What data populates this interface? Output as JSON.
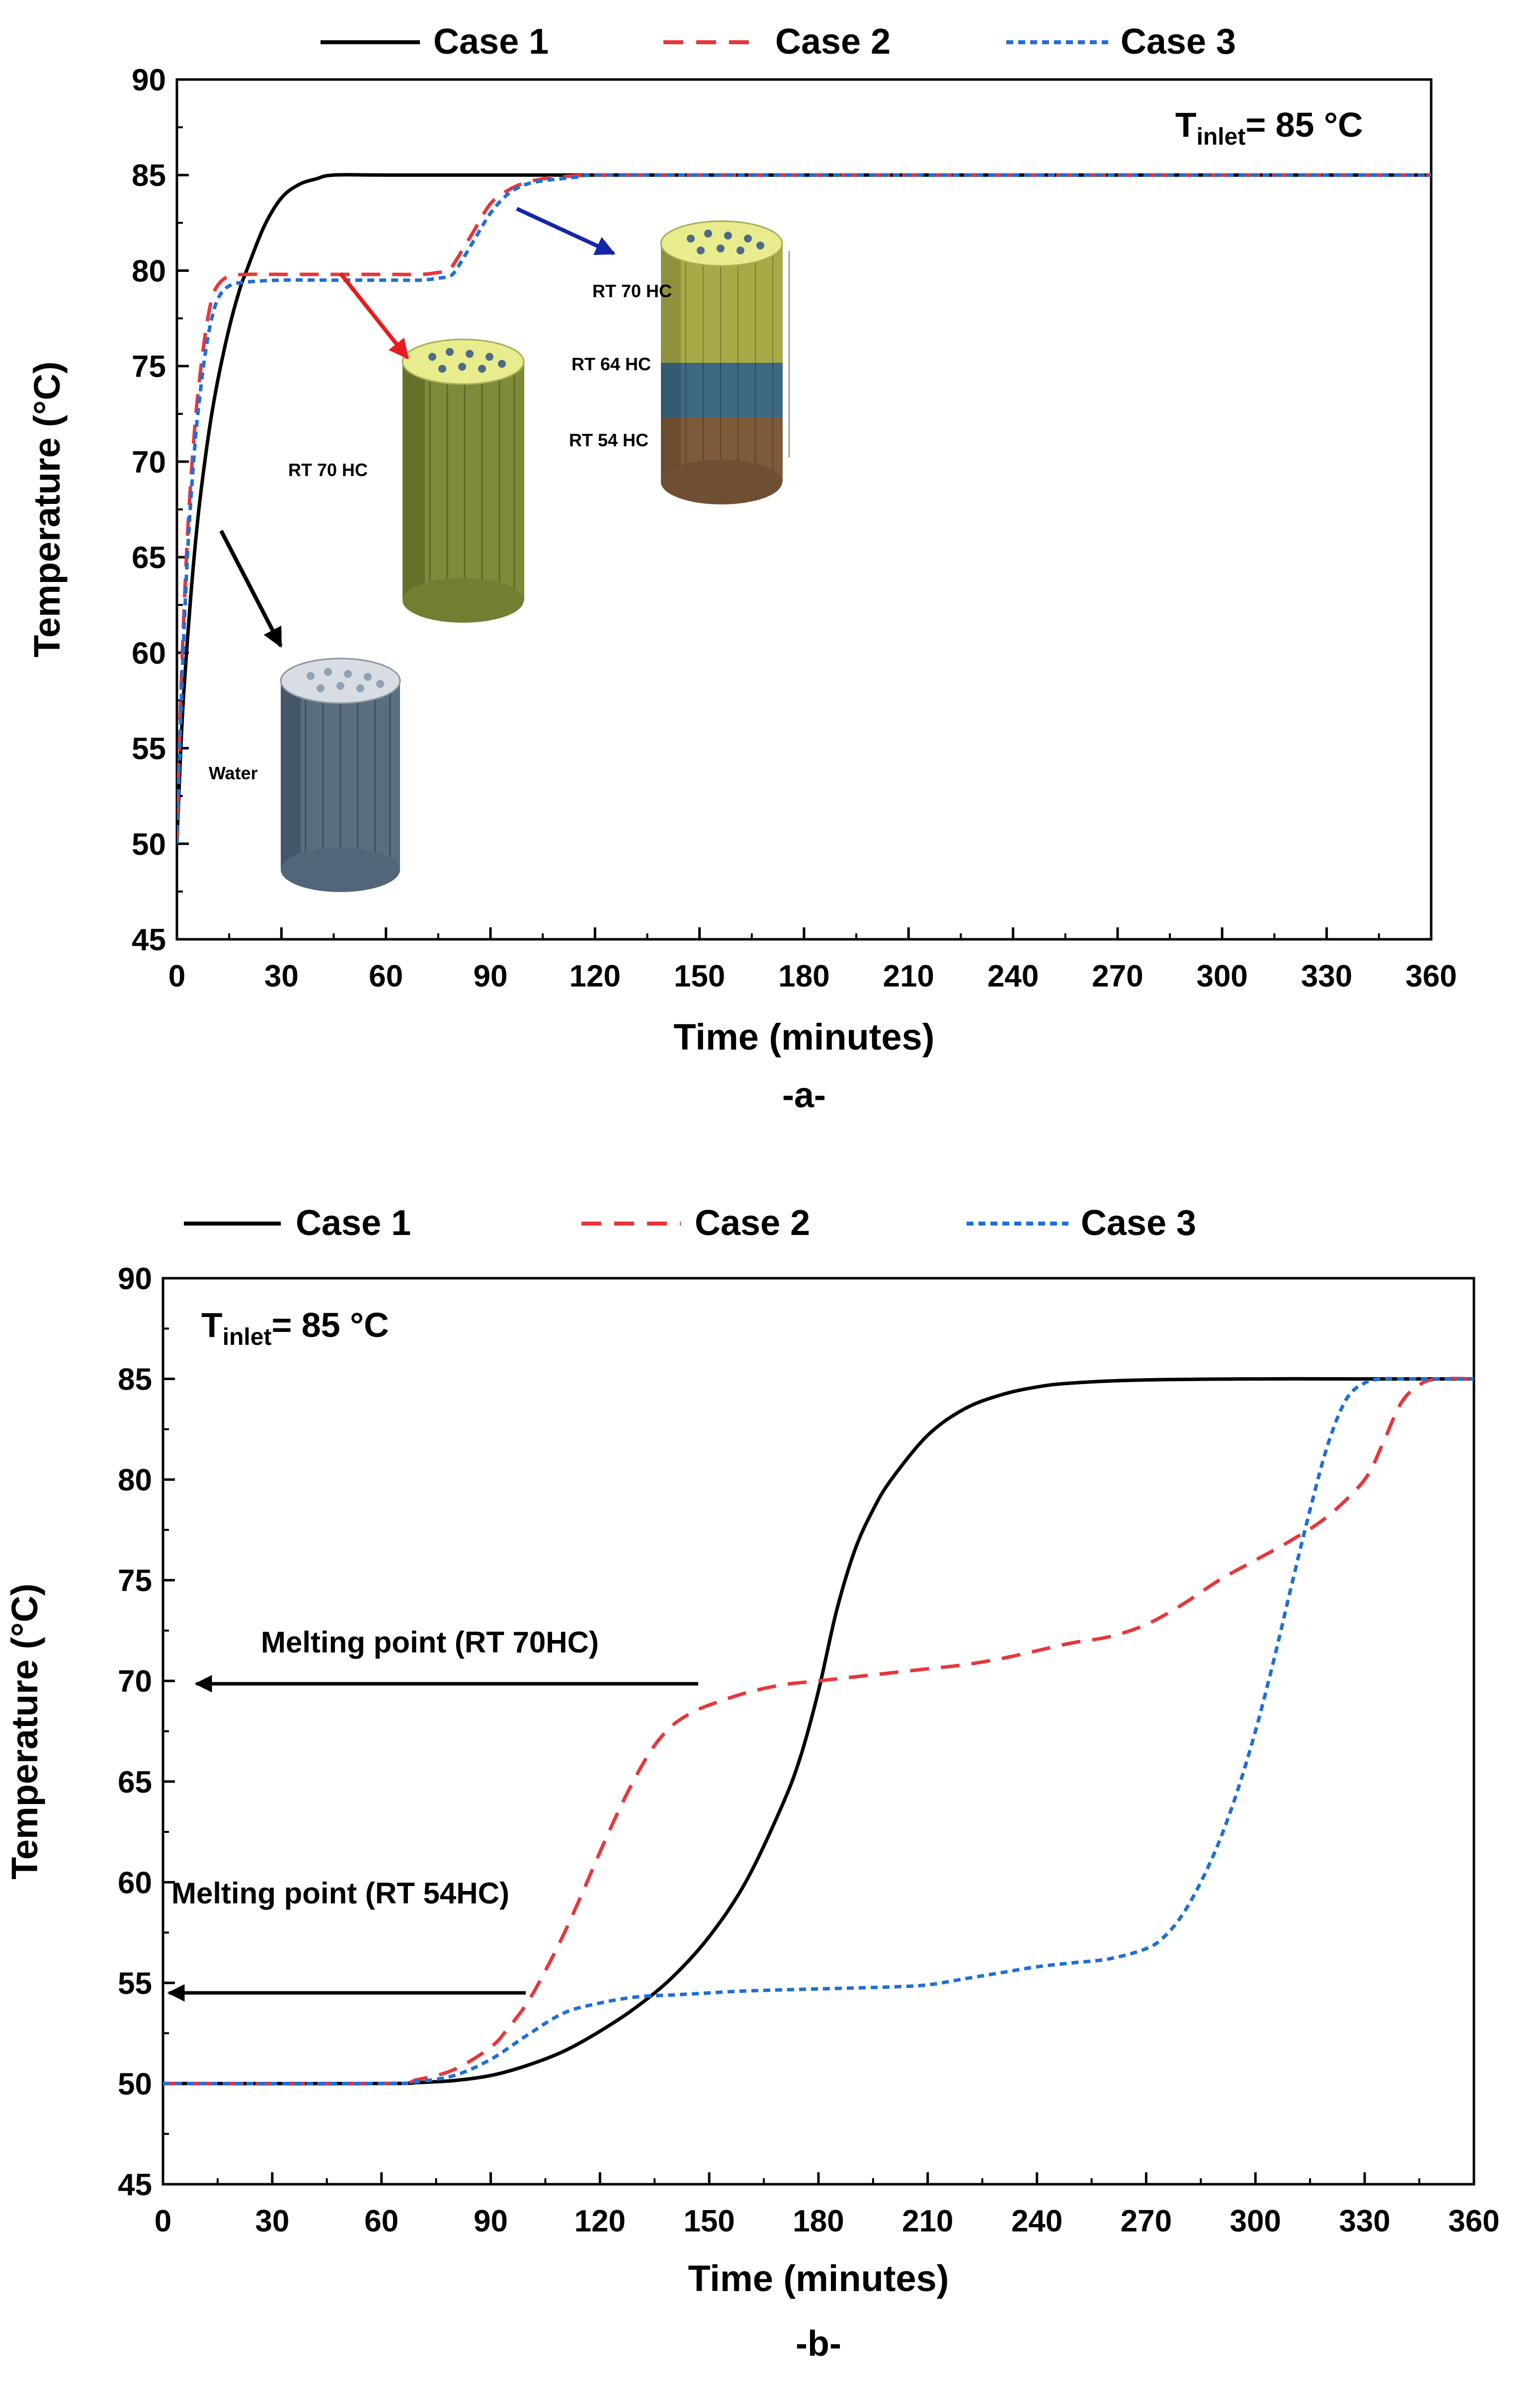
{
  "colors": {
    "case1": "#000000",
    "case2": "#e8363a",
    "case3": "#1f6fd6",
    "arrow_black": "#000000",
    "arrow_red": "#e81c1c",
    "arrow_blue": "#1426a8",
    "water": "#5a6e80",
    "rt70": "#7f8a3a",
    "rt64": "#3d6a82",
    "rt54": "#7d5a3a",
    "top_face": "#e8ec8c"
  },
  "chart_data": [
    {
      "type": "line",
      "panel_label": "-a-",
      "title": "",
      "xlabel": "Time (minutes)",
      "ylabel": "Temperature (°C)",
      "xlim": [
        0,
        360
      ],
      "ylim": [
        45,
        90
      ],
      "xticks": [
        0,
        30,
        60,
        90,
        120,
        150,
        180,
        210,
        240,
        270,
        300,
        330,
        360
      ],
      "yticks": [
        45,
        50,
        55,
        60,
        65,
        70,
        75,
        80,
        85,
        90
      ],
      "legend": [
        "Case 1",
        "Case 2",
        "Case 3"
      ],
      "legend_position": "top-outside",
      "annotation": {
        "main": "T",
        "sub": "inlet",
        "rest": "= 85 °C"
      },
      "insets": [
        {
          "name": "water",
          "label": "Water"
        },
        {
          "name": "rt70",
          "label": "RT 70 HC"
        },
        {
          "name": "layered",
          "labels": [
            "RT 70 HC",
            "RT 64 HC",
            "RT 54 HC"
          ]
        }
      ],
      "series": [
        {
          "name": "Case 1",
          "style": "solid",
          "x": [
            0,
            1,
            2,
            4,
            6,
            8,
            10,
            12,
            15,
            18,
            20,
            25,
            30,
            35,
            40,
            45,
            60,
            90,
            120,
            150,
            180,
            210,
            240,
            270,
            300,
            330,
            360
          ],
          "y": [
            50,
            54.5,
            58,
            63,
            67,
            70,
            72.5,
            74.5,
            77,
            79,
            80,
            82.3,
            83.8,
            84.5,
            84.8,
            85,
            85,
            85,
            85,
            85,
            85,
            85,
            85,
            85,
            85,
            85,
            85
          ]
        },
        {
          "name": "Case 2",
          "style": "dashed",
          "x": [
            0,
            1,
            2,
            3,
            4,
            5,
            6,
            8,
            10,
            12,
            15,
            20,
            30,
            45,
            60,
            70,
            75,
            78,
            80,
            85,
            90,
            95,
            100,
            105,
            110,
            120,
            150,
            180,
            210,
            240,
            270,
            300,
            330,
            360
          ],
          "y": [
            50,
            57,
            62,
            66,
            69,
            71.5,
            73.5,
            76.5,
            78.5,
            79.3,
            79.7,
            79.8,
            79.8,
            79.8,
            79.8,
            79.8,
            79.9,
            80,
            80.5,
            82,
            83.5,
            84.2,
            84.6,
            84.8,
            84.9,
            85,
            85,
            85,
            85,
            85,
            85,
            85,
            85,
            85
          ]
        },
        {
          "name": "Case 3",
          "style": "dotted",
          "x": [
            0,
            1,
            2,
            3,
            4,
            5,
            6,
            8,
            10,
            12,
            15,
            20,
            30,
            45,
            60,
            70,
            75,
            78,
            80,
            85,
            90,
            95,
            100,
            105,
            110,
            115,
            120,
            150,
            180,
            210,
            240,
            270,
            300,
            330,
            360
          ],
          "y": [
            50,
            56,
            61,
            65,
            68,
            70.5,
            72.5,
            75.5,
            77.5,
            78.6,
            79.2,
            79.4,
            79.5,
            79.5,
            79.5,
            79.5,
            79.6,
            79.7,
            80,
            81.5,
            83,
            84,
            84.5,
            84.7,
            84.8,
            84.9,
            85,
            85,
            85,
            85,
            85,
            85,
            85,
            85,
            85
          ]
        }
      ]
    },
    {
      "type": "line",
      "panel_label": "-b-",
      "title": "",
      "xlabel": "Time (minutes)",
      "ylabel": "Temperature (°C)",
      "xlim": [
        0,
        360
      ],
      "ylim": [
        45,
        90
      ],
      "xticks": [
        0,
        30,
        60,
        90,
        120,
        150,
        180,
        210,
        240,
        270,
        300,
        330,
        360
      ],
      "yticks": [
        45,
        50,
        55,
        60,
        65,
        70,
        75,
        80,
        85,
        90
      ],
      "legend": [
        "Case 1",
        "Case 2",
        "Case 3"
      ],
      "legend_position": "top-outside",
      "annotation": {
        "main": "T",
        "sub": "inlet",
        "rest": "= 85 °C"
      },
      "arrows": [
        {
          "label": "Melting point (RT 70HC)",
          "value": 70
        },
        {
          "label": "Melting point (RT 54HC)",
          "value": 54.5
        }
      ],
      "series": [
        {
          "name": "Case 1",
          "style": "solid",
          "x": [
            0,
            60,
            70,
            80,
            90,
            100,
            110,
            120,
            130,
            140,
            150,
            160,
            170,
            175,
            180,
            185,
            190,
            195,
            200,
            210,
            220,
            230,
            240,
            250,
            270,
            300,
            330,
            360
          ],
          "y": [
            50,
            50,
            50.05,
            50.15,
            50.4,
            50.9,
            51.6,
            52.6,
            53.8,
            55.3,
            57.3,
            60,
            63.8,
            66.2,
            69.5,
            73.5,
            76.5,
            78.5,
            80,
            82.2,
            83.5,
            84.2,
            84.6,
            84.8,
            84.95,
            85,
            85,
            85
          ]
        },
        {
          "name": "Case 2",
          "style": "dashed",
          "x": [
            0,
            60,
            70,
            80,
            90,
            95,
            100,
            105,
            110,
            115,
            120,
            125,
            130,
            135,
            140,
            145,
            150,
            160,
            170,
            180,
            190,
            200,
            210,
            220,
            230,
            240,
            250,
            260,
            270,
            280,
            290,
            300,
            310,
            320,
            330,
            335,
            340,
            345,
            350,
            360
          ],
          "y": [
            50,
            50,
            50.2,
            50.7,
            51.8,
            52.8,
            54,
            55.6,
            57.4,
            59.4,
            61.5,
            63.5,
            65.3,
            66.8,
            67.8,
            68.4,
            68.8,
            69.4,
            69.8,
            70,
            70.2,
            70.4,
            70.6,
            70.8,
            71.1,
            71.5,
            71.9,
            72.2,
            72.8,
            73.8,
            75,
            76,
            77,
            78.2,
            80,
            81.8,
            83.8,
            84.7,
            85,
            85
          ]
        },
        {
          "name": "Case 3",
          "style": "dotted",
          "x": [
            0,
            60,
            70,
            80,
            90,
            100,
            110,
            120,
            130,
            140,
            150,
            160,
            180,
            200,
            210,
            220,
            230,
            240,
            250,
            260,
            270,
            275,
            280,
            285,
            290,
            295,
            300,
            305,
            310,
            315,
            320,
            325,
            330,
            335,
            340,
            345,
            350,
            360
          ],
          "y": [
            50,
            50,
            50.1,
            50.4,
            51.2,
            52.4,
            53.5,
            54,
            54.3,
            54.4,
            54.5,
            54.6,
            54.7,
            54.8,
            54.9,
            55.2,
            55.5,
            55.8,
            56,
            56.2,
            56.7,
            57.3,
            58.4,
            60,
            62,
            64.5,
            67.5,
            71,
            74.8,
            78.5,
            81.8,
            84,
            84.8,
            85,
            85,
            85,
            85,
            85
          ]
        }
      ]
    }
  ]
}
